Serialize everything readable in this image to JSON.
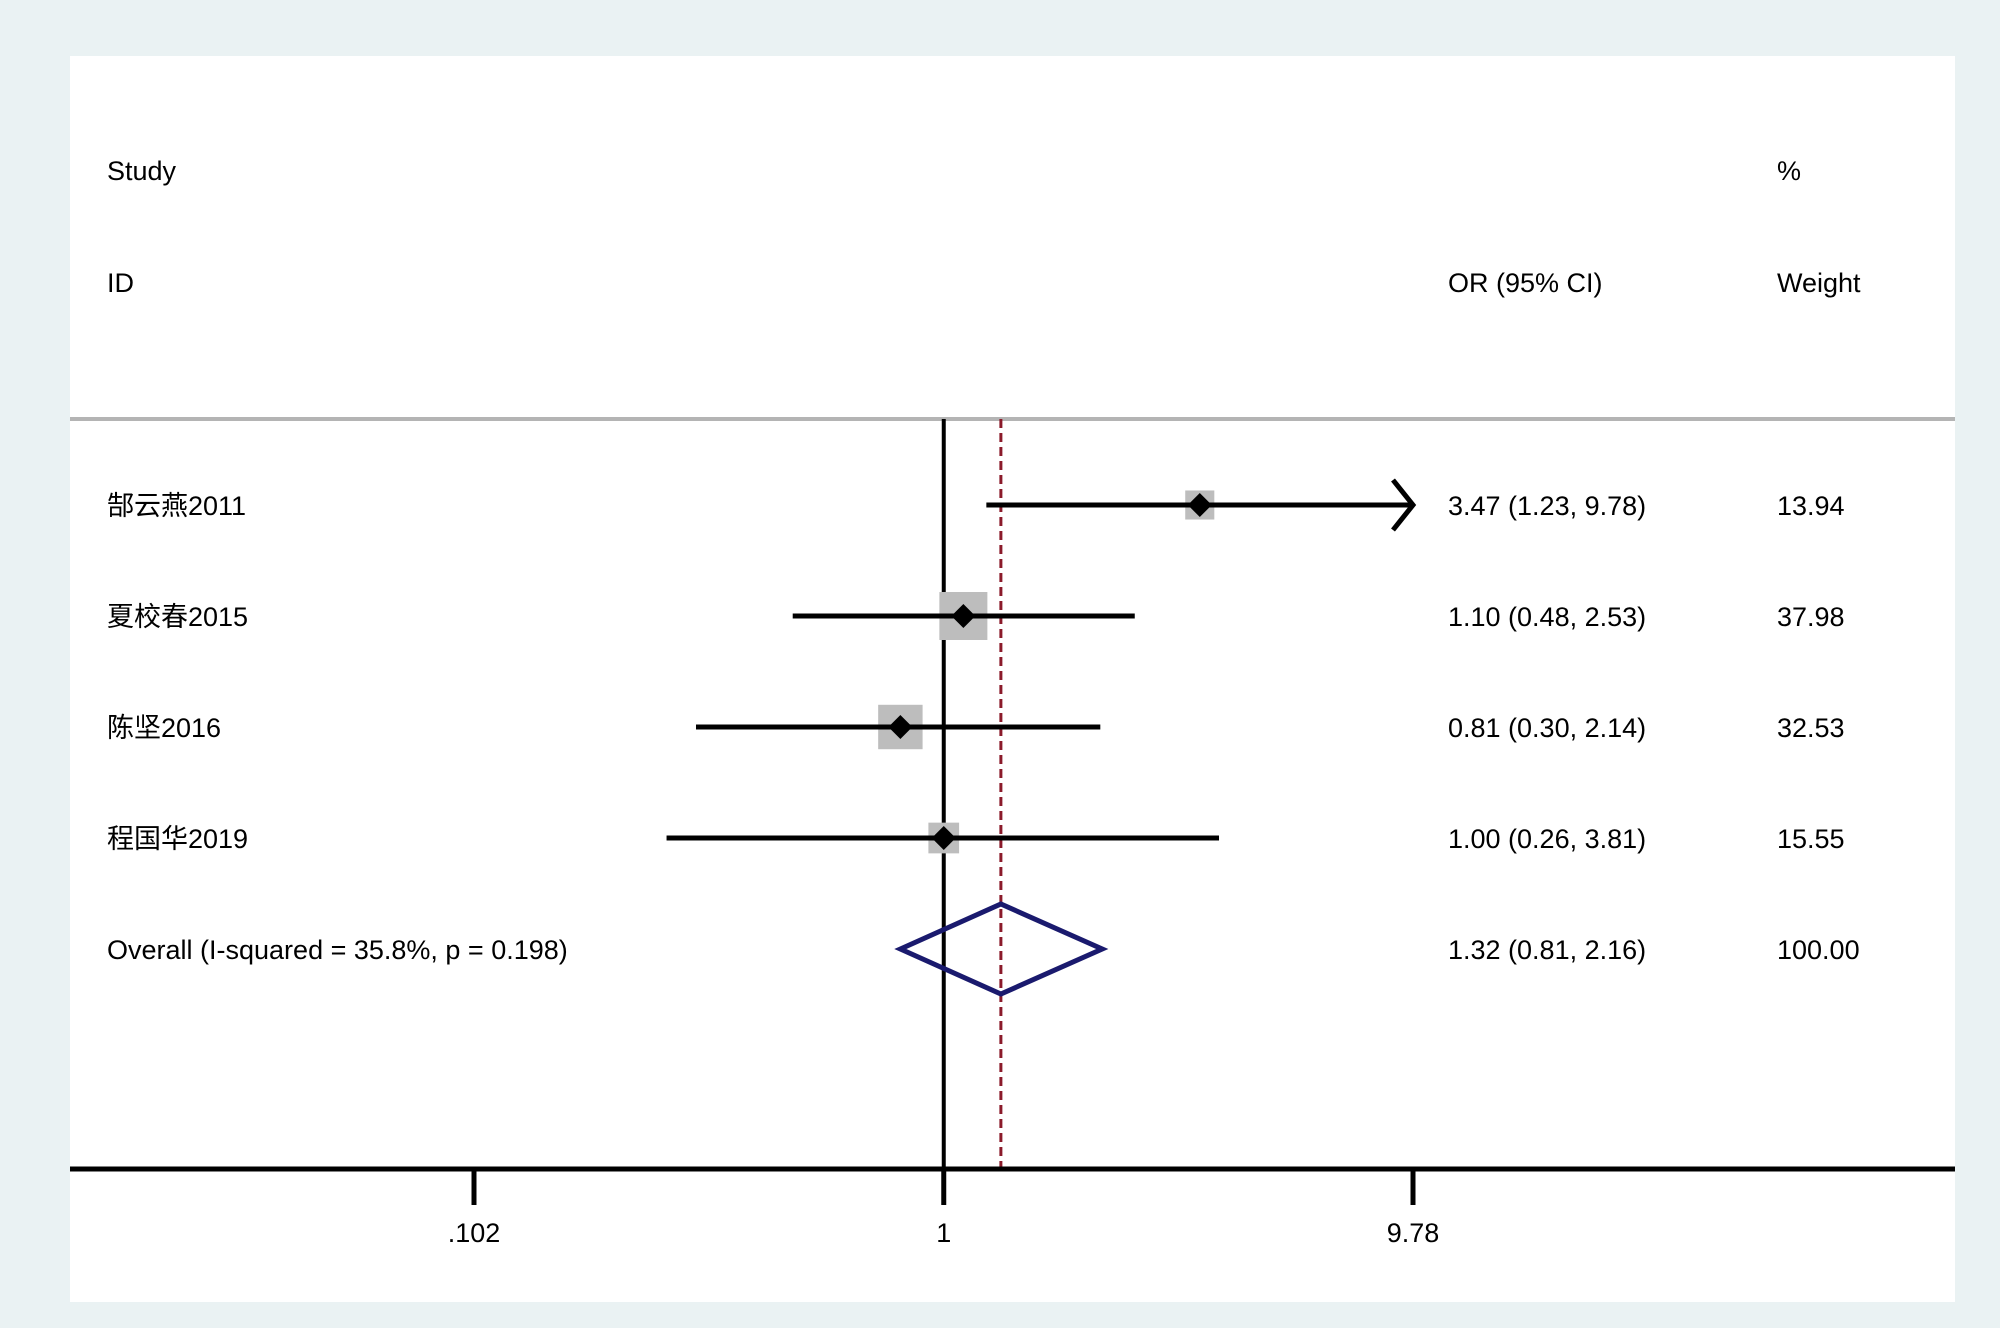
{
  "headers": {
    "study_line1": "Study",
    "study_line2": "ID",
    "effect_line2": "OR (95% CI)",
    "weight_line1": "%",
    "weight_line2": "Weight"
  },
  "chart_data": {
    "type": "forest",
    "scale": "log",
    "x_ticks": [
      0.102,
      1,
      9.78
    ],
    "x_tick_labels": [
      ".102",
      "1",
      "9.78"
    ],
    "xlim": [
      0.102,
      9.78
    ],
    "null_line": 1,
    "studies": [
      {
        "label": "郜云燕2011",
        "or": 3.47,
        "ci_low": 1.23,
        "ci_high": 9.78,
        "ci_text": "3.47 (1.23, 9.78)",
        "weight": 13.94,
        "weight_text": "13.94",
        "ci_arrow_right": true
      },
      {
        "label": "夏校春2015",
        "or": 1.1,
        "ci_low": 0.48,
        "ci_high": 2.53,
        "ci_text": "1.10 (0.48, 2.53)",
        "weight": 37.98,
        "weight_text": "37.98",
        "ci_arrow_right": false
      },
      {
        "label": "陈坚2016",
        "or": 0.81,
        "ci_low": 0.3,
        "ci_high": 2.14,
        "ci_text": "0.81 (0.30, 2.14)",
        "weight": 32.53,
        "weight_text": "32.53",
        "ci_arrow_right": false
      },
      {
        "label": "程国华2019",
        "or": 1.0,
        "ci_low": 0.26,
        "ci_high": 3.81,
        "ci_text": "1.00 (0.26, 3.81)",
        "weight": 15.55,
        "weight_text": "15.55",
        "ci_arrow_right": false
      }
    ],
    "overall": {
      "label": "Overall  (I-squared = 35.8%, p = 0.198)",
      "or": 1.32,
      "ci_low": 0.81,
      "ci_high": 2.16,
      "ci_text": "1.32 (0.81, 2.16)",
      "weight": 100.0,
      "weight_text": "100.00"
    },
    "colors": {
      "page_background": "#eaf2f3",
      "plot_background": "#ffffff",
      "ci_line": "#000000",
      "weight_box": "#bdbdbd",
      "point": "#000000",
      "diamond": "#1a1a6e",
      "overall_line": "#8b1a2a",
      "separator": "#b4b4b4"
    }
  }
}
